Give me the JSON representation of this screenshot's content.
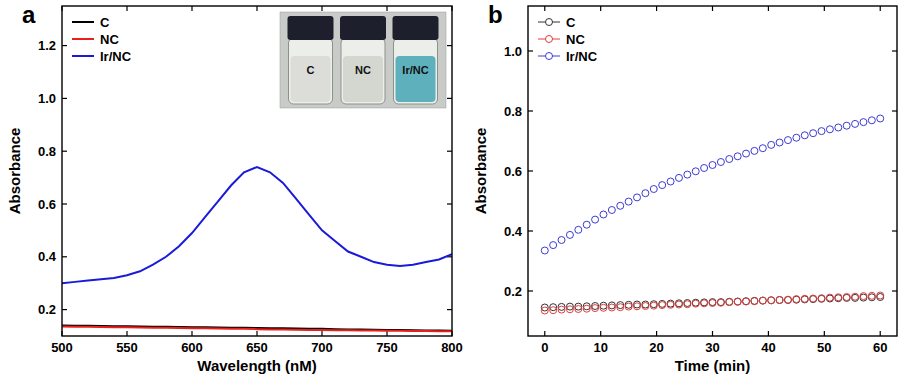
{
  "chart_data": [
    {
      "type": "line",
      "title": "a",
      "x_label": "Wavelength (nM)",
      "y_label": "Absorbance",
      "x": [
        500,
        510,
        520,
        530,
        540,
        550,
        560,
        570,
        580,
        590,
        600,
        610,
        620,
        630,
        640,
        650,
        660,
        670,
        680,
        690,
        700,
        710,
        720,
        730,
        740,
        750,
        760,
        770,
        780,
        790,
        800
      ],
      "series": [
        {
          "name": "C",
          "color": "#000000",
          "values": [
            0.14,
            0.139,
            0.139,
            0.138,
            0.137,
            0.137,
            0.136,
            0.135,
            0.135,
            0.134,
            0.133,
            0.133,
            0.132,
            0.131,
            0.131,
            0.13,
            0.129,
            0.129,
            0.128,
            0.127,
            0.127,
            0.126,
            0.125,
            0.125,
            0.124,
            0.123,
            0.123,
            0.122,
            0.121,
            0.121,
            0.12
          ]
        },
        {
          "name": "NC",
          "color": "#e8201c",
          "values": [
            0.136,
            0.135,
            0.135,
            0.134,
            0.133,
            0.133,
            0.132,
            0.131,
            0.131,
            0.13,
            0.129,
            0.129,
            0.128,
            0.127,
            0.127,
            0.126,
            0.125,
            0.125,
            0.124,
            0.123,
            0.123,
            0.122,
            0.122,
            0.121,
            0.121,
            0.12,
            0.12,
            0.119,
            0.119,
            0.118,
            0.118
          ]
        },
        {
          "name": "Ir/NC",
          "color": "#1a1adb",
          "values": [
            0.3,
            0.305,
            0.31,
            0.315,
            0.32,
            0.33,
            0.345,
            0.37,
            0.4,
            0.44,
            0.49,
            0.55,
            0.61,
            0.67,
            0.72,
            0.74,
            0.72,
            0.68,
            0.62,
            0.56,
            0.5,
            0.46,
            0.42,
            0.4,
            0.38,
            0.37,
            0.365,
            0.37,
            0.38,
            0.39,
            0.41
          ]
        }
      ],
      "xlim": [
        500,
        800
      ],
      "xticks": [
        500,
        550,
        600,
        650,
        700,
        750,
        800
      ],
      "ylim": [
        0.1,
        1.35
      ],
      "yticks": [
        0.2,
        0.4,
        0.6,
        0.8,
        {
          "value": 1.0,
          "label": "1.0"
        },
        1.2
      ],
      "legend": "upper left",
      "annotations": [
        "C",
        "NC",
        "Ir/NC"
      ]
    },
    {
      "type": "scatter",
      "title": "b",
      "x_label": "Time (min)",
      "y_label": "Absorbance",
      "marker": "open-circle",
      "x": [
        0,
        1.5,
        3,
        4.5,
        6,
        7.5,
        9,
        10.5,
        12,
        13.5,
        15,
        16.5,
        18,
        19.5,
        21,
        22.5,
        24,
        25.5,
        27,
        28.5,
        30,
        31.5,
        33,
        34.5,
        36,
        37.5,
        39,
        40.5,
        42,
        43.5,
        45,
        46.5,
        48,
        49.5,
        51,
        52.5,
        54,
        55.5,
        57,
        58.5,
        60
      ],
      "series": [
        {
          "name": "C",
          "color": "#333333",
          "values": [
            0.145,
            0.146,
            0.147,
            0.148,
            0.148,
            0.149,
            0.15,
            0.151,
            0.152,
            0.153,
            0.154,
            0.155,
            0.155,
            0.156,
            0.157,
            0.158,
            0.159,
            0.16,
            0.161,
            0.162,
            0.163,
            0.163,
            0.164,
            0.165,
            0.166,
            0.167,
            0.168,
            0.169,
            0.17,
            0.17,
            0.171,
            0.172,
            0.173,
            0.174,
            0.175,
            0.176,
            0.177,
            0.177,
            0.178,
            0.179,
            0.18
          ]
        },
        {
          "name": "NC",
          "color": "#e03c3c",
          "values": [
            0.135,
            0.136,
            0.138,
            0.139,
            0.14,
            0.141,
            0.143,
            0.144,
            0.145,
            0.146,
            0.148,
            0.149,
            0.15,
            0.151,
            0.153,
            0.154,
            0.155,
            0.156,
            0.158,
            0.159,
            0.16,
            0.161,
            0.163,
            0.164,
            0.165,
            0.166,
            0.168,
            0.169,
            0.17,
            0.171,
            0.173,
            0.174,
            0.175,
            0.176,
            0.178,
            0.179,
            0.18,
            0.181,
            0.183,
            0.184,
            0.185
          ]
        },
        {
          "name": "Ir/NC",
          "color": "#3b3bd1",
          "values": [
            0.335,
            0.353,
            0.37,
            0.387,
            0.404,
            0.421,
            0.438,
            0.455,
            0.47,
            0.484,
            0.498,
            0.512,
            0.526,
            0.54,
            0.553,
            0.565,
            0.577,
            0.588,
            0.599,
            0.61,
            0.62,
            0.63,
            0.64,
            0.649,
            0.658,
            0.667,
            0.676,
            0.687,
            0.695,
            0.703,
            0.711,
            0.719,
            0.726,
            0.733,
            0.739,
            0.745,
            0.751,
            0.757,
            0.763,
            0.769,
            0.775
          ]
        }
      ],
      "xlim": [
        -3,
        63
      ],
      "xticks": [
        0,
        10,
        20,
        30,
        40,
        50,
        60
      ],
      "ylim": [
        0.05,
        1.15
      ],
      "yticks": [
        0.2,
        0.4,
        0.6,
        0.8,
        {
          "value": 1.0,
          "label": "1.0"
        }
      ],
      "legend": "upper left"
    }
  ]
}
